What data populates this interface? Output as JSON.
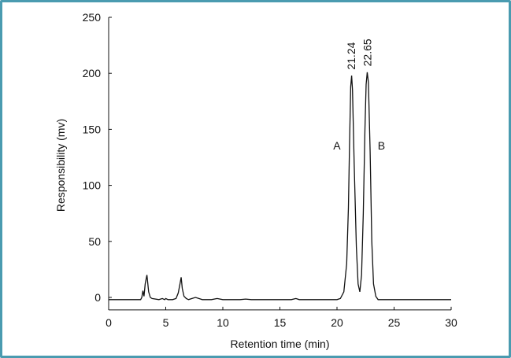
{
  "chart_data": {
    "type": "line",
    "title": "",
    "xlabel": "Retention time (min)",
    "ylabel": "Responsibility  (mv)",
    "xlim": [
      0,
      30
    ],
    "ylim": [
      0,
      250
    ],
    "x_ticks": [
      0,
      5,
      10,
      15,
      20,
      25,
      30
    ],
    "y_ticks": [
      0,
      50,
      100,
      150,
      200,
      250
    ],
    "grid": false,
    "baseline": -2,
    "series": [
      {
        "values": [
          [
            0,
            -2
          ],
          [
            2.8,
            -2
          ],
          [
            2.9,
            0
          ],
          [
            3.0,
            6
          ],
          [
            3.1,
            1
          ],
          [
            3.2,
            12
          ],
          [
            3.35,
            20
          ],
          [
            3.5,
            5
          ],
          [
            3.65,
            0
          ],
          [
            3.8,
            -1
          ],
          [
            4.4,
            -2
          ],
          [
            4.7,
            -1
          ],
          [
            4.9,
            -2
          ],
          [
            5.0,
            -1
          ],
          [
            5.2,
            -2
          ],
          [
            5.6,
            -2
          ],
          [
            5.9,
            -1
          ],
          [
            6.1,
            4
          ],
          [
            6.25,
            12
          ],
          [
            6.35,
            18
          ],
          [
            6.45,
            8
          ],
          [
            6.6,
            1
          ],
          [
            6.8,
            -1
          ],
          [
            7.0,
            -2
          ],
          [
            7.3,
            -1
          ],
          [
            7.6,
            0
          ],
          [
            7.9,
            -1
          ],
          [
            8.2,
            -2
          ],
          [
            9.0,
            -2
          ],
          [
            9.5,
            -1
          ],
          [
            10.0,
            -2
          ],
          [
            11.5,
            -2
          ],
          [
            12.0,
            -1.5
          ],
          [
            12.5,
            -2
          ],
          [
            16.0,
            -2
          ],
          [
            16.4,
            -1
          ],
          [
            16.7,
            -2
          ],
          [
            20.0,
            -2
          ],
          [
            20.3,
            -1
          ],
          [
            20.6,
            5
          ],
          [
            20.85,
            30
          ],
          [
            21.0,
            80
          ],
          [
            21.1,
            135
          ],
          [
            21.2,
            188
          ],
          [
            21.28,
            198
          ],
          [
            21.36,
            185
          ],
          [
            21.5,
            120
          ],
          [
            21.7,
            45
          ],
          [
            21.85,
            12
          ],
          [
            22.0,
            5
          ],
          [
            22.15,
            20
          ],
          [
            22.3,
            75
          ],
          [
            22.45,
            150
          ],
          [
            22.55,
            190
          ],
          [
            22.65,
            201
          ],
          [
            22.75,
            192
          ],
          [
            22.9,
            130
          ],
          [
            23.05,
            50
          ],
          [
            23.2,
            12
          ],
          [
            23.4,
            1
          ],
          [
            23.6,
            -2
          ],
          [
            30,
            -2
          ]
        ]
      }
    ],
    "annotations": [
      {
        "text": "21.24",
        "x": 21.24
      },
      {
        "text": "22.65",
        "x": 22.65
      },
      {
        "text": "A",
        "x": 21.24
      },
      {
        "text": "B",
        "x": 22.65
      }
    ]
  }
}
